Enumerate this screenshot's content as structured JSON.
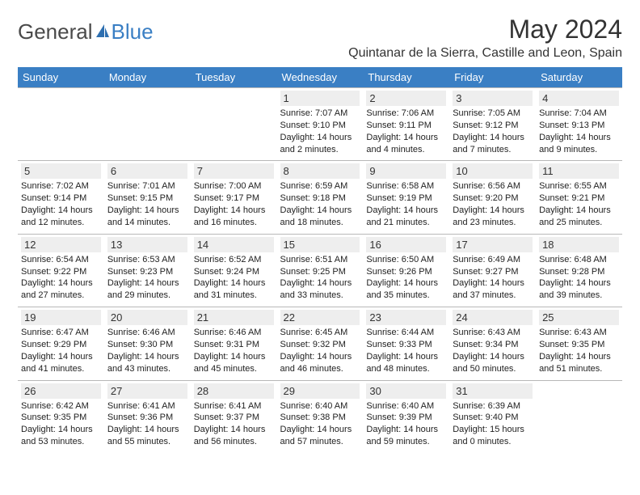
{
  "logo": {
    "text_gray": "General",
    "text_blue": "Blue"
  },
  "header": {
    "month_title": "May 2024",
    "location": "Quintanar de la Sierra, Castille and Leon, Spain"
  },
  "colors": {
    "header_bg": "#3a7fc4",
    "header_text": "#ffffff",
    "daynum_bg": "#eeeeee",
    "border": "#b8b8b8",
    "body_text": "#222222",
    "title_text": "#333333"
  },
  "weekdays": [
    "Sunday",
    "Monday",
    "Tuesday",
    "Wednesday",
    "Thursday",
    "Friday",
    "Saturday"
  ],
  "weeks": [
    [
      null,
      null,
      null,
      {
        "n": "1",
        "sr": "7:07 AM",
        "ss": "9:10 PM",
        "dl": "14 hours and 2 minutes."
      },
      {
        "n": "2",
        "sr": "7:06 AM",
        "ss": "9:11 PM",
        "dl": "14 hours and 4 minutes."
      },
      {
        "n": "3",
        "sr": "7:05 AM",
        "ss": "9:12 PM",
        "dl": "14 hours and 7 minutes."
      },
      {
        "n": "4",
        "sr": "7:04 AM",
        "ss": "9:13 PM",
        "dl": "14 hours and 9 minutes."
      }
    ],
    [
      {
        "n": "5",
        "sr": "7:02 AM",
        "ss": "9:14 PM",
        "dl": "14 hours and 12 minutes."
      },
      {
        "n": "6",
        "sr": "7:01 AM",
        "ss": "9:15 PM",
        "dl": "14 hours and 14 minutes."
      },
      {
        "n": "7",
        "sr": "7:00 AM",
        "ss": "9:17 PM",
        "dl": "14 hours and 16 minutes."
      },
      {
        "n": "8",
        "sr": "6:59 AM",
        "ss": "9:18 PM",
        "dl": "14 hours and 18 minutes."
      },
      {
        "n": "9",
        "sr": "6:58 AM",
        "ss": "9:19 PM",
        "dl": "14 hours and 21 minutes."
      },
      {
        "n": "10",
        "sr": "6:56 AM",
        "ss": "9:20 PM",
        "dl": "14 hours and 23 minutes."
      },
      {
        "n": "11",
        "sr": "6:55 AM",
        "ss": "9:21 PM",
        "dl": "14 hours and 25 minutes."
      }
    ],
    [
      {
        "n": "12",
        "sr": "6:54 AM",
        "ss": "9:22 PM",
        "dl": "14 hours and 27 minutes."
      },
      {
        "n": "13",
        "sr": "6:53 AM",
        "ss": "9:23 PM",
        "dl": "14 hours and 29 minutes."
      },
      {
        "n": "14",
        "sr": "6:52 AM",
        "ss": "9:24 PM",
        "dl": "14 hours and 31 minutes."
      },
      {
        "n": "15",
        "sr": "6:51 AM",
        "ss": "9:25 PM",
        "dl": "14 hours and 33 minutes."
      },
      {
        "n": "16",
        "sr": "6:50 AM",
        "ss": "9:26 PM",
        "dl": "14 hours and 35 minutes."
      },
      {
        "n": "17",
        "sr": "6:49 AM",
        "ss": "9:27 PM",
        "dl": "14 hours and 37 minutes."
      },
      {
        "n": "18",
        "sr": "6:48 AM",
        "ss": "9:28 PM",
        "dl": "14 hours and 39 minutes."
      }
    ],
    [
      {
        "n": "19",
        "sr": "6:47 AM",
        "ss": "9:29 PM",
        "dl": "14 hours and 41 minutes."
      },
      {
        "n": "20",
        "sr": "6:46 AM",
        "ss": "9:30 PM",
        "dl": "14 hours and 43 minutes."
      },
      {
        "n": "21",
        "sr": "6:46 AM",
        "ss": "9:31 PM",
        "dl": "14 hours and 45 minutes."
      },
      {
        "n": "22",
        "sr": "6:45 AM",
        "ss": "9:32 PM",
        "dl": "14 hours and 46 minutes."
      },
      {
        "n": "23",
        "sr": "6:44 AM",
        "ss": "9:33 PM",
        "dl": "14 hours and 48 minutes."
      },
      {
        "n": "24",
        "sr": "6:43 AM",
        "ss": "9:34 PM",
        "dl": "14 hours and 50 minutes."
      },
      {
        "n": "25",
        "sr": "6:43 AM",
        "ss": "9:35 PM",
        "dl": "14 hours and 51 minutes."
      }
    ],
    [
      {
        "n": "26",
        "sr": "6:42 AM",
        "ss": "9:35 PM",
        "dl": "14 hours and 53 minutes."
      },
      {
        "n": "27",
        "sr": "6:41 AM",
        "ss": "9:36 PM",
        "dl": "14 hours and 55 minutes."
      },
      {
        "n": "28",
        "sr": "6:41 AM",
        "ss": "9:37 PM",
        "dl": "14 hours and 56 minutes."
      },
      {
        "n": "29",
        "sr": "6:40 AM",
        "ss": "9:38 PM",
        "dl": "14 hours and 57 minutes."
      },
      {
        "n": "30",
        "sr": "6:40 AM",
        "ss": "9:39 PM",
        "dl": "14 hours and 59 minutes."
      },
      {
        "n": "31",
        "sr": "6:39 AM",
        "ss": "9:40 PM",
        "dl": "15 hours and 0 minutes."
      },
      null
    ]
  ],
  "labels": {
    "sunrise": "Sunrise:",
    "sunset": "Sunset:",
    "daylight": "Daylight:"
  }
}
